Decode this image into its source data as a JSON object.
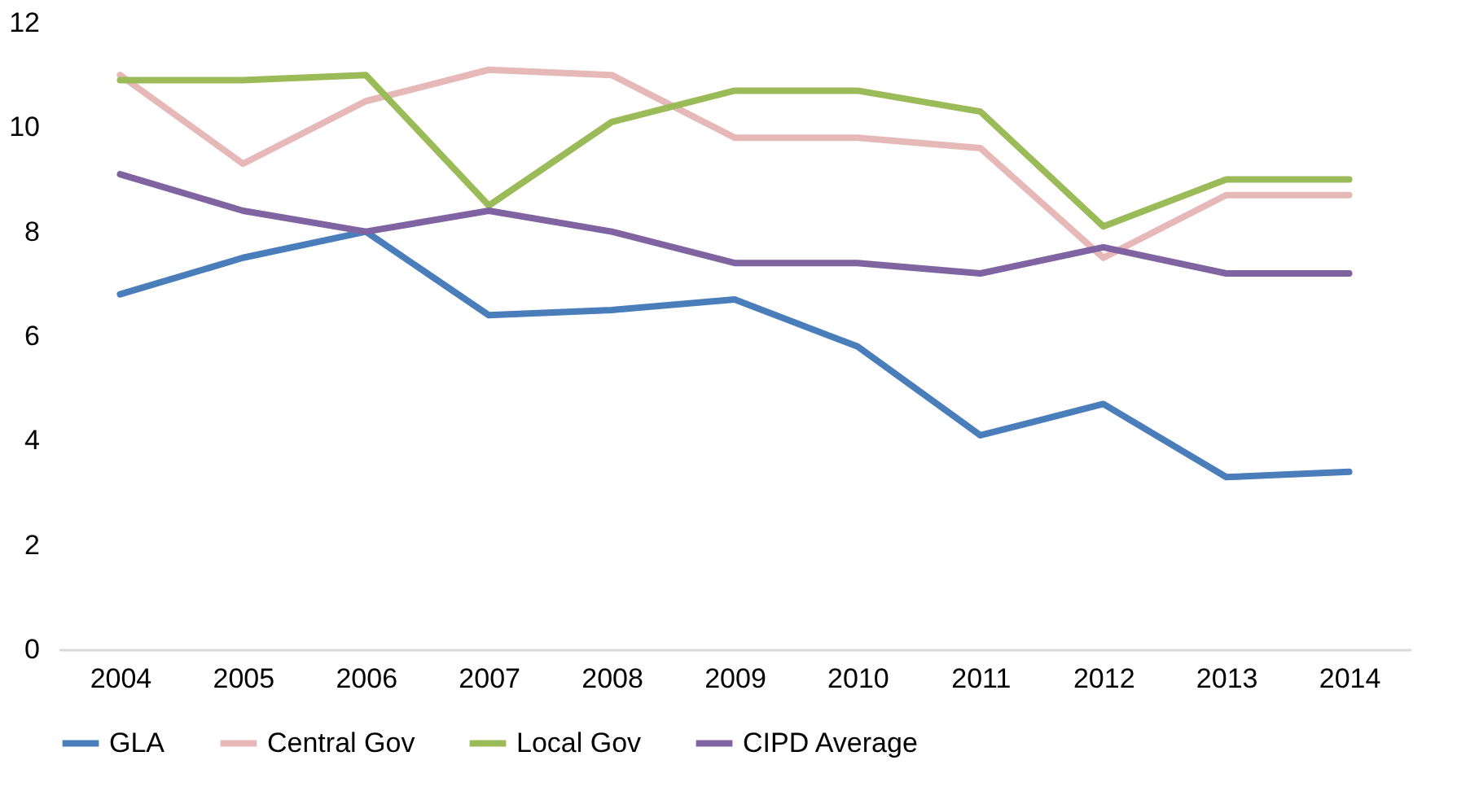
{
  "chart_data": {
    "type": "line",
    "categories": [
      "2004",
      "2005",
      "2006",
      "2007",
      "2008",
      "2009",
      "2010",
      "2011",
      "2012",
      "2013",
      "2014"
    ],
    "series": [
      {
        "name": "GLA",
        "color": "#4a7ebb",
        "values": [
          6.8,
          7.5,
          8.0,
          6.4,
          6.5,
          6.7,
          5.8,
          4.1,
          4.7,
          3.3,
          3.4
        ]
      },
      {
        "name": "Central Gov",
        "color": "#e6b9b8",
        "values": [
          11.0,
          9.3,
          10.5,
          11.1,
          11.0,
          9.8,
          9.8,
          9.6,
          7.5,
          8.7,
          8.7
        ]
      },
      {
        "name": "Local Gov",
        "color": "#9bbb59",
        "values": [
          10.9,
          10.9,
          11.0,
          8.5,
          10.1,
          10.7,
          10.7,
          10.3,
          8.1,
          9.0,
          9.0
        ]
      },
      {
        "name": "CIPD  Average",
        "color": "#8064a2",
        "values": [
          9.1,
          8.4,
          8.0,
          8.4,
          8.0,
          7.4,
          7.4,
          7.2,
          7.7,
          7.2,
          7.2
        ]
      }
    ],
    "ylim": [
      0,
      12
    ],
    "yticks": [
      0,
      2,
      4,
      6,
      8,
      10,
      12
    ],
    "grid": false,
    "legend": "bottom",
    "marker": "none",
    "line_style": "solid"
  }
}
